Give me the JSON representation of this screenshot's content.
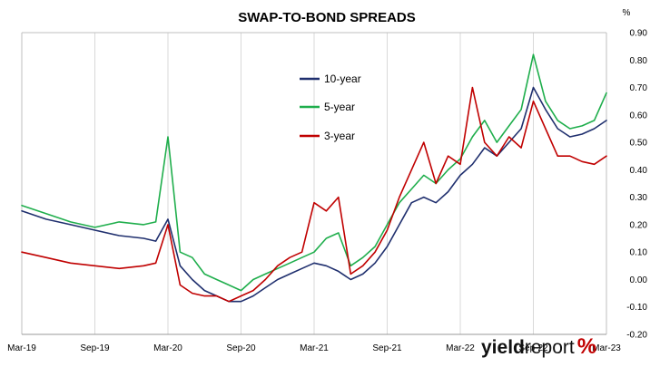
{
  "chart_data": {
    "type": "line",
    "title": "SWAP-TO-BOND SPREADS",
    "ylabel": "%",
    "xlabel": "",
    "x_ticks": [
      "Mar-19",
      "Sep-19",
      "Mar-20",
      "Sep-20",
      "Mar-21",
      "Sep-21",
      "Mar-22",
      "Sep-22",
      "Mar-23"
    ],
    "xlim": [
      "2019-03",
      "2023-03"
    ],
    "y_ticks": [
      "-0.20",
      "-0.10",
      "0.00",
      "0.10",
      "0.20",
      "0.30",
      "0.40",
      "0.50",
      "0.60",
      "0.70",
      "0.80",
      "0.90"
    ],
    "ylim": [
      -0.2,
      0.9
    ],
    "y_axis_position": "right",
    "grid": "vertical",
    "legend_position": "center-left",
    "series": [
      {
        "name": "10-year",
        "color": "#1f2f6e",
        "x": [
          "2019-03",
          "2019-05",
          "2019-07",
          "2019-09",
          "2019-11",
          "2020-01",
          "2020-02",
          "2020-03",
          "2020-04",
          "2020-05",
          "2020-06",
          "2020-07",
          "2020-08",
          "2020-09",
          "2020-10",
          "2020-11",
          "2020-12",
          "2021-01",
          "2021-02",
          "2021-03",
          "2021-04",
          "2021-05",
          "2021-06",
          "2021-07",
          "2021-08",
          "2021-09",
          "2021-10",
          "2021-11",
          "2021-12",
          "2022-01",
          "2022-02",
          "2022-03",
          "2022-04",
          "2022-05",
          "2022-06",
          "2022-07",
          "2022-08",
          "2022-09",
          "2022-10",
          "2022-11",
          "2022-12",
          "2023-01",
          "2023-02",
          "2023-03"
        ],
        "values": [
          0.25,
          0.22,
          0.2,
          0.18,
          0.16,
          0.15,
          0.14,
          0.22,
          0.05,
          0.0,
          -0.04,
          -0.06,
          -0.08,
          -0.08,
          -0.06,
          -0.03,
          0.0,
          0.02,
          0.04,
          0.06,
          0.05,
          0.03,
          0.0,
          0.02,
          0.06,
          0.12,
          0.2,
          0.28,
          0.3,
          0.28,
          0.32,
          0.38,
          0.42,
          0.48,
          0.45,
          0.5,
          0.55,
          0.7,
          0.62,
          0.55,
          0.52,
          0.53,
          0.55,
          0.58
        ]
      },
      {
        "name": "5-year",
        "color": "#1fae4c",
        "x": [
          "2019-03",
          "2019-05",
          "2019-07",
          "2019-09",
          "2019-11",
          "2020-01",
          "2020-02",
          "2020-03",
          "2020-04",
          "2020-05",
          "2020-06",
          "2020-07",
          "2020-08",
          "2020-09",
          "2020-10",
          "2020-11",
          "2020-12",
          "2021-01",
          "2021-02",
          "2021-03",
          "2021-04",
          "2021-05",
          "2021-06",
          "2021-07",
          "2021-08",
          "2021-09",
          "2021-10",
          "2021-11",
          "2021-12",
          "2022-01",
          "2022-02",
          "2022-03",
          "2022-04",
          "2022-05",
          "2022-06",
          "2022-07",
          "2022-08",
          "2022-09",
          "2022-10",
          "2022-11",
          "2022-12",
          "2023-01",
          "2023-02",
          "2023-03"
        ],
        "values": [
          0.27,
          0.24,
          0.21,
          0.19,
          0.21,
          0.2,
          0.21,
          0.52,
          0.1,
          0.08,
          0.02,
          0.0,
          -0.02,
          -0.04,
          0.0,
          0.02,
          0.04,
          0.06,
          0.08,
          0.1,
          0.15,
          0.17,
          0.05,
          0.08,
          0.12,
          0.2,
          0.28,
          0.33,
          0.38,
          0.35,
          0.4,
          0.44,
          0.52,
          0.58,
          0.5,
          0.56,
          0.62,
          0.82,
          0.65,
          0.58,
          0.55,
          0.56,
          0.58,
          0.68
        ]
      },
      {
        "name": "3-year",
        "color": "#c00000",
        "x": [
          "2019-03",
          "2019-05",
          "2019-07",
          "2019-09",
          "2019-11",
          "2020-01",
          "2020-02",
          "2020-03",
          "2020-04",
          "2020-05",
          "2020-06",
          "2020-07",
          "2020-08",
          "2020-09",
          "2020-10",
          "2020-11",
          "2020-12",
          "2021-01",
          "2021-02",
          "2021-03",
          "2021-04",
          "2021-05",
          "2021-06",
          "2021-07",
          "2021-08",
          "2021-09",
          "2021-10",
          "2021-11",
          "2021-12",
          "2022-01",
          "2022-02",
          "2022-03",
          "2022-04",
          "2022-05",
          "2022-06",
          "2022-07",
          "2022-08",
          "2022-09",
          "2022-10",
          "2022-11",
          "2022-12",
          "2023-01",
          "2023-02",
          "2023-03"
        ],
        "values": [
          0.1,
          0.08,
          0.06,
          0.05,
          0.04,
          0.05,
          0.06,
          0.2,
          -0.02,
          -0.05,
          -0.06,
          -0.06,
          -0.08,
          -0.06,
          -0.04,
          0.0,
          0.05,
          0.08,
          0.1,
          0.28,
          0.25,
          0.3,
          0.02,
          0.05,
          0.1,
          0.18,
          0.3,
          0.4,
          0.5,
          0.35,
          0.45,
          0.42,
          0.7,
          0.5,
          0.45,
          0.52,
          0.48,
          0.65,
          0.55,
          0.45,
          0.45,
          0.43,
          0.42,
          0.45
        ]
      }
    ]
  },
  "brand": {
    "name_bold": "yield",
    "name_light": "report",
    "mark": "%"
  }
}
